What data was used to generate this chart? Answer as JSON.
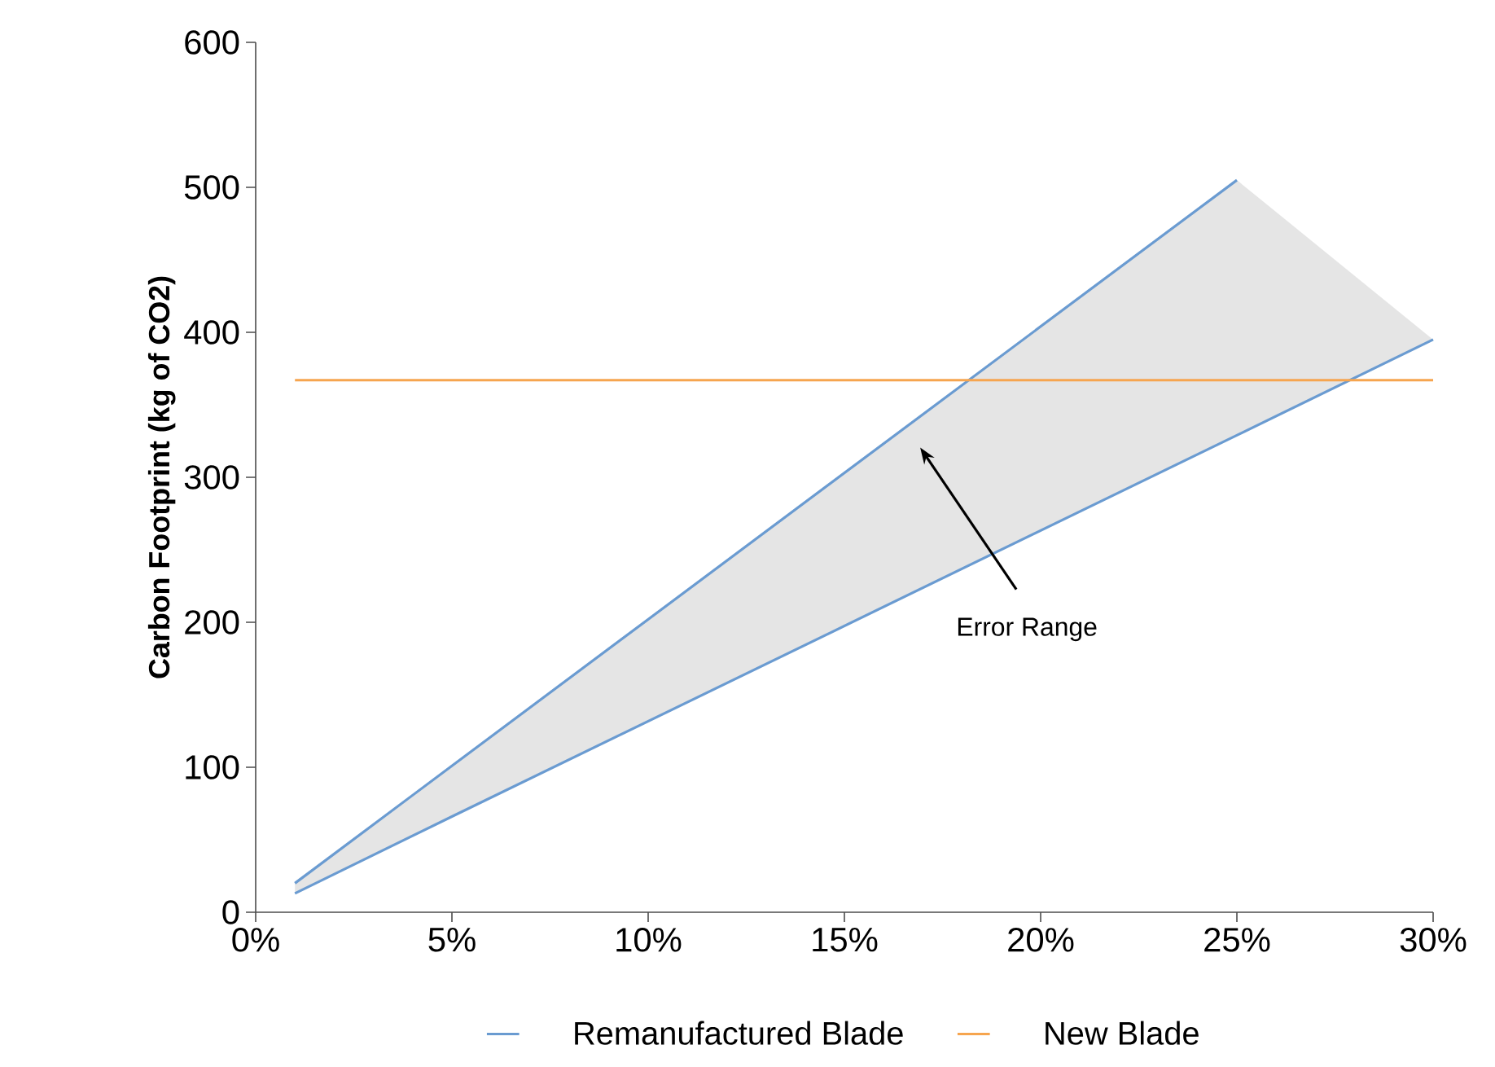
{
  "chart_data": {
    "type": "line",
    "ylabel": "Carbon Footprint (kg of CO2)",
    "series": [
      {
        "name": "Remanufactured Blade",
        "color": "#6a9bd1",
        "x": [
          1,
          5,
          25,
          30
        ],
        "values": [
          20,
          101,
          505,
          null
        ],
        "lower": [
          13,
          66,
          329,
          395
        ],
        "upper": [
          20,
          101,
          505,
          395
        ]
      },
      {
        "color": "#6a9bd1",
        "x": [
          1,
          5,
          25,
          30
        ],
        "values": [
          13,
          66,
          329,
          395
        ]
      },
      {
        "name": "New Blade",
        "color": "#f6a54f",
        "x": [
          1,
          30
        ],
        "values": [
          367,
          367
        ]
      }
    ],
    "xlim": [
      0,
      30
    ],
    "ylim": [
      0,
      600
    ],
    "xticks": [
      {
        "value": 0,
        "label": "0%"
      },
      {
        "value": 5,
        "label": "5%"
      },
      {
        "value": 10,
        "label": "10%"
      },
      {
        "value": 15,
        "label": "15%"
      },
      {
        "value": 20,
        "label": "20%"
      },
      {
        "value": 25,
        "label": "25%"
      },
      {
        "value": 30,
        "label": "30%"
      }
    ],
    "yticks": [
      0,
      100,
      200,
      300,
      400,
      500,
      600
    ],
    "annotations": [
      "Error Range"
    ],
    "legend": "bottom",
    "grid": false,
    "marker": "none",
    "line_style": "solid"
  }
}
